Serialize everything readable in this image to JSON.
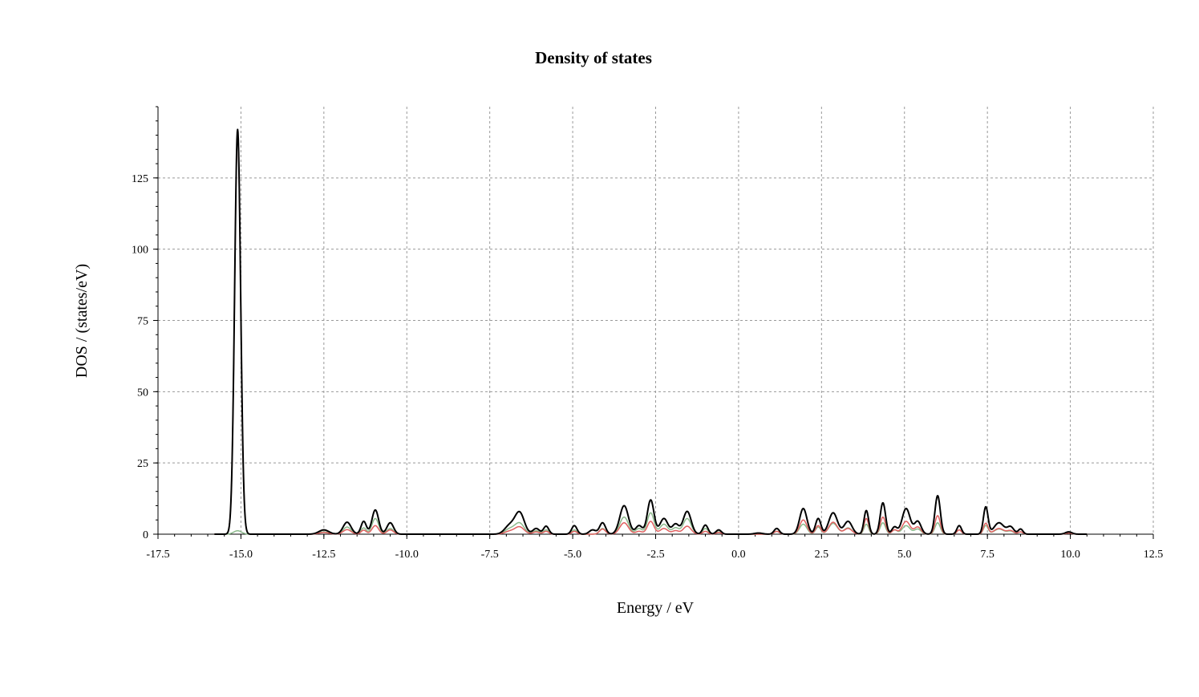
{
  "chart_data": {
    "type": "line",
    "title": "Density of states",
    "xlabel": "Energy / eV",
    "ylabel": "DOS / (states/eV)",
    "xlim": [
      -17.5,
      12.5
    ],
    "ylim": [
      0,
      150
    ],
    "x_ticks": [
      -17.5,
      -15.0,
      -12.5,
      -10.0,
      -7.5,
      -5.0,
      -2.5,
      0.0,
      2.5,
      5.0,
      7.5,
      10.0,
      12.5
    ],
    "x_tick_labels": [
      "-17.5",
      "-15.0",
      "-12.5",
      "-10.0",
      "-7.5",
      "-5.0",
      "-2.5",
      "0.0",
      "2.5",
      "5.0",
      "7.5",
      "10.0",
      "12.5"
    ],
    "y_ticks": [
      0,
      25,
      50,
      75,
      100,
      125
    ],
    "y_tick_labels": [
      "0",
      "25",
      "50",
      "75",
      "100",
      "125"
    ],
    "grid": true,
    "series": [
      {
        "color": "#000000",
        "peaks": [
          [
            -15.1,
            142,
            0.09
          ],
          [
            -12.5,
            1.5,
            0.15
          ],
          [
            -11.8,
            4.2,
            0.12
          ],
          [
            -11.3,
            4.5,
            0.08
          ],
          [
            -10.95,
            8.5,
            0.1
          ],
          [
            -10.5,
            4.0,
            0.1
          ],
          [
            -6.9,
            3.0,
            0.15
          ],
          [
            -6.6,
            7.5,
            0.14
          ],
          [
            -6.1,
            2.0,
            0.1
          ],
          [
            -5.8,
            2.8,
            0.08
          ],
          [
            -4.95,
            3.0,
            0.08
          ],
          [
            -4.4,
            1.5,
            0.1
          ],
          [
            -4.1,
            4.0,
            0.09
          ],
          [
            -3.45,
            10.0,
            0.13
          ],
          [
            -3.0,
            3.0,
            0.1
          ],
          [
            -2.65,
            12.0,
            0.1
          ],
          [
            -2.25,
            5.5,
            0.12
          ],
          [
            -1.9,
            3.5,
            0.1
          ],
          [
            -1.55,
            8.0,
            0.12
          ],
          [
            -1.0,
            3.2,
            0.08
          ],
          [
            -0.6,
            1.5,
            0.08
          ],
          [
            0.6,
            0.4,
            0.12
          ],
          [
            1.15,
            2.0,
            0.08
          ],
          [
            1.95,
            9.0,
            0.11
          ],
          [
            2.4,
            5.5,
            0.08
          ],
          [
            2.85,
            7.5,
            0.13
          ],
          [
            3.3,
            4.5,
            0.12
          ],
          [
            3.85,
            8.3,
            0.07
          ],
          [
            4.35,
            11.0,
            0.08
          ],
          [
            4.7,
            2.5,
            0.08
          ],
          [
            5.05,
            9.0,
            0.12
          ],
          [
            5.4,
            4.5,
            0.1
          ],
          [
            6.0,
            13.5,
            0.08
          ],
          [
            6.65,
            3.0,
            0.07
          ],
          [
            7.45,
            9.5,
            0.07
          ],
          [
            7.85,
            4.0,
            0.15
          ],
          [
            8.2,
            2.5,
            0.1
          ],
          [
            8.5,
            1.8,
            0.07
          ],
          [
            9.95,
            0.8,
            0.1
          ]
        ]
      },
      {
        "color": "#8cba8c",
        "peaks": [
          [
            -15.1,
            1.2,
            0.12
          ],
          [
            -12.5,
            0.8,
            0.15
          ],
          [
            -11.8,
            2.5,
            0.12
          ],
          [
            -11.3,
            2.2,
            0.08
          ],
          [
            -10.95,
            5.5,
            0.1
          ],
          [
            -10.5,
            2.0,
            0.1
          ],
          [
            -6.9,
            1.8,
            0.15
          ],
          [
            -6.6,
            3.8,
            0.14
          ],
          [
            -6.1,
            1.2,
            0.1
          ],
          [
            -5.8,
            1.5,
            0.08
          ],
          [
            -4.95,
            1.5,
            0.08
          ],
          [
            -4.1,
            2.0,
            0.09
          ],
          [
            -3.45,
            6.0,
            0.13
          ],
          [
            -3.0,
            2.0,
            0.1
          ],
          [
            -2.65,
            7.5,
            0.1
          ],
          [
            -2.25,
            3.5,
            0.12
          ],
          [
            -1.9,
            2.2,
            0.1
          ],
          [
            -1.55,
            5.5,
            0.12
          ],
          [
            -1.0,
            2.0,
            0.08
          ],
          [
            -0.6,
            0.8,
            0.08
          ],
          [
            1.15,
            1.0,
            0.08
          ],
          [
            1.95,
            3.5,
            0.11
          ],
          [
            2.4,
            2.5,
            0.08
          ],
          [
            2.85,
            3.8,
            0.13
          ],
          [
            3.3,
            2.2,
            0.12
          ],
          [
            3.85,
            3.5,
            0.07
          ],
          [
            4.35,
            4.0,
            0.08
          ],
          [
            4.7,
            1.5,
            0.08
          ],
          [
            5.05,
            3.0,
            0.12
          ],
          [
            5.4,
            1.8,
            0.1
          ],
          [
            6.0,
            4.0,
            0.08
          ],
          [
            6.65,
            1.5,
            0.07
          ],
          [
            7.45,
            3.0,
            0.07
          ],
          [
            7.85,
            1.8,
            0.15
          ],
          [
            8.2,
            1.0,
            0.1
          ],
          [
            8.5,
            0.8,
            0.07
          ],
          [
            9.95,
            0.4,
            0.1
          ]
        ]
      },
      {
        "color": "#e06060",
        "peaks": [
          [
            -15.1,
            141,
            0.09
          ],
          [
            -12.5,
            0.6,
            0.15
          ],
          [
            -11.8,
            1.6,
            0.12
          ],
          [
            -11.3,
            1.4,
            0.08
          ],
          [
            -10.95,
            3.0,
            0.1
          ],
          [
            -10.5,
            1.5,
            0.1
          ],
          [
            -6.9,
            1.0,
            0.15
          ],
          [
            -6.6,
            2.5,
            0.14
          ],
          [
            -6.1,
            0.8,
            0.1
          ],
          [
            -5.8,
            1.0,
            0.08
          ],
          [
            -4.95,
            1.0,
            0.08
          ],
          [
            -4.1,
            1.8,
            0.09
          ],
          [
            -3.45,
            4.0,
            0.13
          ],
          [
            -3.0,
            1.0,
            0.1
          ],
          [
            -2.65,
            4.5,
            0.1
          ],
          [
            -2.25,
            2.0,
            0.12
          ],
          [
            -1.9,
            1.2,
            0.1
          ],
          [
            -1.55,
            2.8,
            0.12
          ],
          [
            -1.0,
            1.0,
            0.08
          ],
          [
            -0.6,
            0.6,
            0.08
          ],
          [
            1.15,
            1.0,
            0.08
          ],
          [
            1.95,
            5.0,
            0.11
          ],
          [
            2.4,
            3.0,
            0.08
          ],
          [
            2.85,
            4.2,
            0.13
          ],
          [
            3.3,
            2.0,
            0.12
          ],
          [
            3.85,
            5.5,
            0.07
          ],
          [
            4.35,
            6.0,
            0.08
          ],
          [
            4.7,
            1.5,
            0.08
          ],
          [
            5.05,
            4.5,
            0.12
          ],
          [
            5.4,
            2.5,
            0.1
          ],
          [
            6.0,
            6.5,
            0.08
          ],
          [
            6.65,
            1.5,
            0.07
          ],
          [
            7.45,
            3.8,
            0.07
          ],
          [
            7.85,
            2.0,
            0.15
          ],
          [
            8.2,
            1.2,
            0.1
          ],
          [
            8.5,
            0.8,
            0.07
          ],
          [
            9.95,
            0.4,
            0.1
          ]
        ]
      }
    ]
  }
}
